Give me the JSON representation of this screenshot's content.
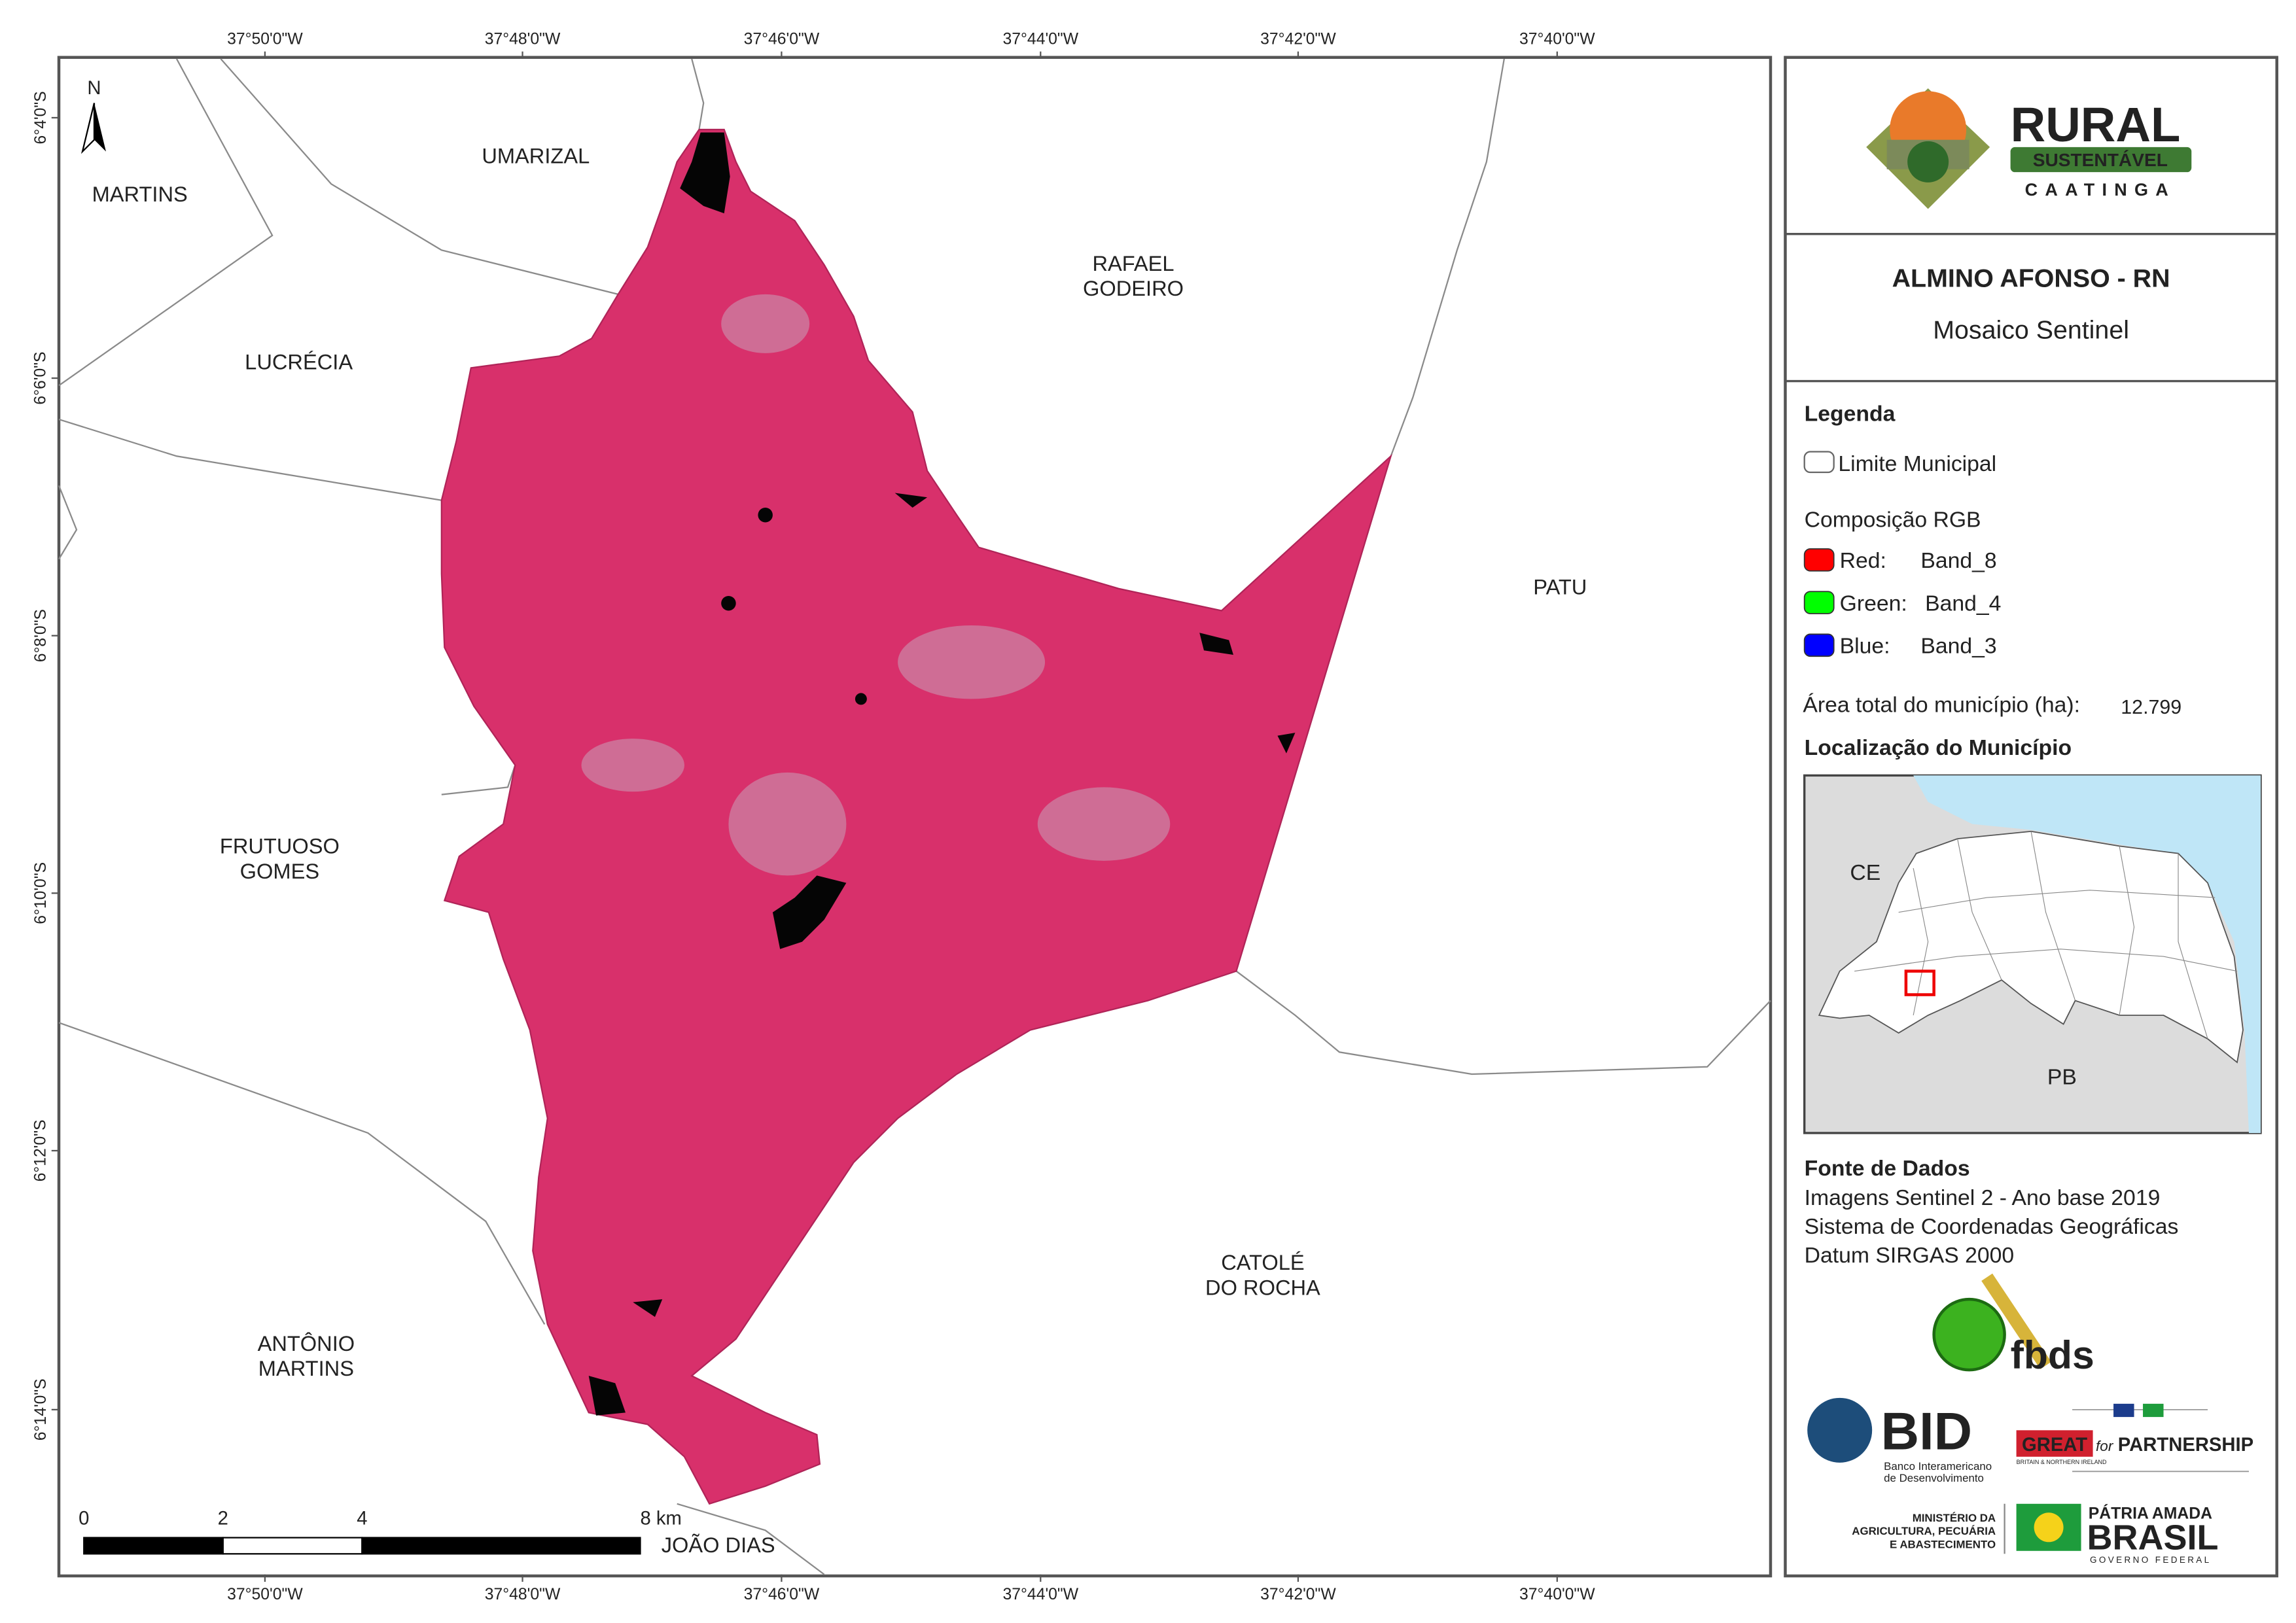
{
  "map": {
    "longitude_labels": [
      "37°50'0\"W",
      "37°48'0\"W",
      "37°46'0\"W",
      "37°44'0\"W",
      "37°42'0\"W",
      "37°40'0\"W"
    ],
    "latitude_labels": [
      "6°4'0\"S",
      "6°6'0\"S",
      "6°8'0\"S",
      "6°10'0\"S",
      "6°12'0\"S",
      "6°14'0\"S"
    ],
    "places": [
      [
        "MARTINS"
      ],
      [
        "UMARIZAL"
      ],
      [
        "RAFAEL",
        "GODEIRO"
      ],
      [
        "LUCRÉCIA"
      ],
      [
        "PATU"
      ],
      [
        "FRUTUOSO",
        "GOMES"
      ],
      [
        "CATOLÉ",
        "DO ROCHA"
      ],
      [
        "ANTÔNIO",
        "MARTINS"
      ],
      [
        "JOÃO DIAS"
      ]
    ],
    "north": "N",
    "scale_bar": [
      0,
      2,
      4,
      {
        "value": 8,
        "label": "8 km"
      }
    ]
  },
  "header": {
    "logo": {
      "rural": "RURAL",
      "sustentavel": "SUSTENTÁVEL",
      "caatinga": "CAATINGA"
    },
    "title": "ALMINO AFONSO - RN",
    "subtitle": "Mosaico Sentinel"
  },
  "legend": {
    "title": "Legenda",
    "boundary": "Limite Municipal",
    "composition": "Composição RGB",
    "bands": [
      {
        "channel": "Red:",
        "band": "Band_8",
        "color": "#ff0000"
      },
      {
        "channel": "Green:",
        "band": "Band_4",
        "color": "#00ff00"
      },
      {
        "channel": "Blue:",
        "band": "Band_3",
        "color": "#0000ff"
      }
    ],
    "area_label": "Área total do município (ha):",
    "area_value": "12.799"
  },
  "location": {
    "title": "Localização do Município",
    "labels": [
      "CE",
      "PB"
    ]
  },
  "sources": {
    "title": "Fonte de Dados",
    "lines": [
      "Imagens Sentinel 2 - Ano base 2019",
      "Sistema de Coordenadas Geográficas",
      "Datum SIRGAS 2000"
    ]
  },
  "logos": {
    "fbds": "fbds",
    "bid": "BID",
    "bid_name": [
      "Banco Interamericano",
      "de Desenvolvimento"
    ],
    "great": "GREAT",
    "for": "for",
    "partnership": "PARTNERSHIP",
    "great_sub": "BRITAIN & NORTHERN IRELAND",
    "ministry": [
      "MINISTÉRIO DA",
      "AGRICULTURA, PECUÁRIA",
      "E ABASTECIMENTO"
    ],
    "patria": "PÁTRIA AMADA",
    "brasil": "BRASIL",
    "governo": "GOVERNO FEDERAL"
  }
}
